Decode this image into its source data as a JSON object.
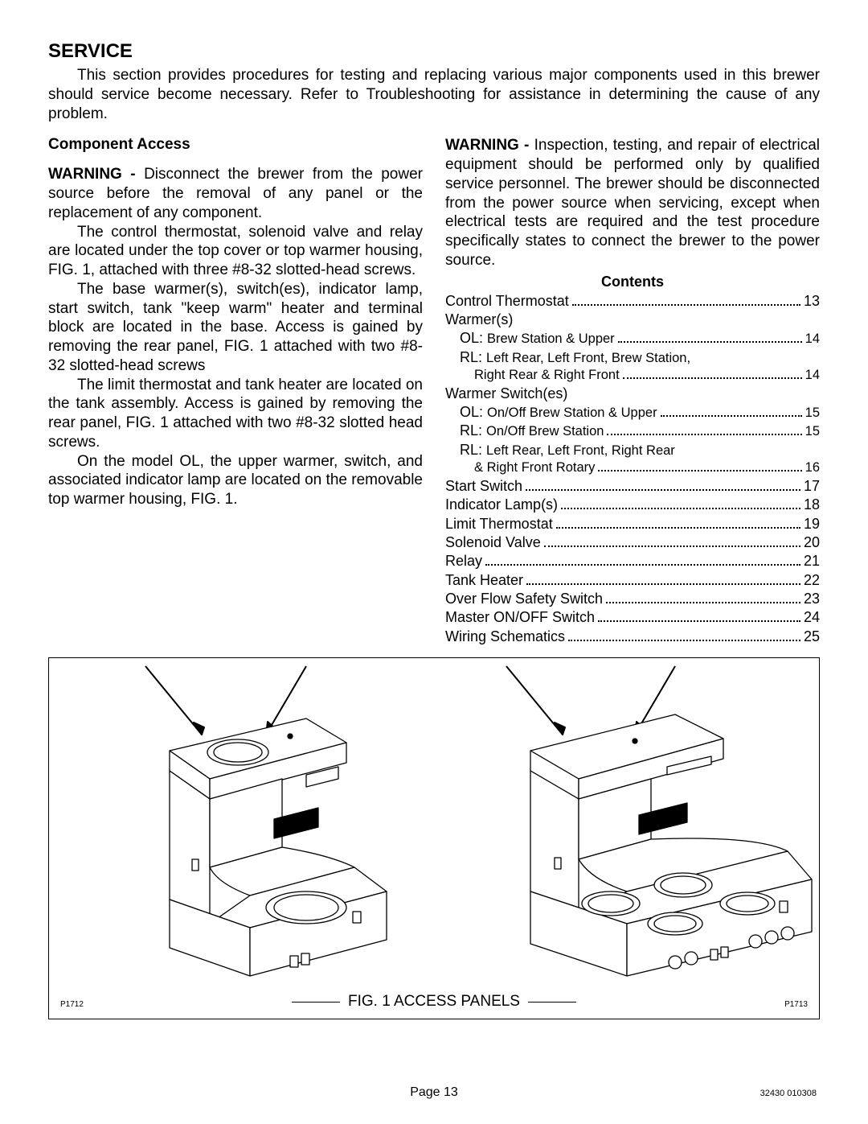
{
  "heading": "SERVICE",
  "intro": "This section provides procedures for testing and replacing various major components used in this brewer should service become necessary.  Refer to Troubleshooting for assistance in determining the cause of any problem.",
  "left": {
    "subhead": "Component Access",
    "warning_label": "WARNING - ",
    "warning_text": "Disconnect the brewer from the power source before the removal of any panel or the replacement of any component.",
    "p1": "The control thermostat, solenoid valve and relay are located under the top cover or top warmer housing, FIG. 1, attached with three #8-32 slotted-head screws.",
    "p2": "The base warmer(s), switch(es), indicator lamp, start switch, tank \"keep warm\" heater and terminal block are located in the base.  Access is gained by removing the rear panel, FIG. 1 attached with two #8-32 slotted-head screws",
    "p3": "The limit thermostat and tank heater are located on the tank assembly.  Access is gained by removing the rear panel, FIG. 1 attached with two #8-32 slotted head screws.",
    "p4": "On the model OL, the upper warmer, switch, and associated indicator lamp are located on the removable top warmer housing, FIG. 1."
  },
  "right": {
    "warning_label": "WARNING - ",
    "warning_text": "Inspection, testing, and repair of electrical equipment should be performed only by qualified service personnel.  The brewer should be disconnected from the power source when servicing, except when electrical tests are required and the test procedure specifically states to connect the brewer to the power source.",
    "contents_head": "Contents",
    "toc": [
      {
        "type": "row",
        "label": "Control Thermostat",
        "page": "13"
      },
      {
        "type": "head",
        "label": "Warmer(s)"
      },
      {
        "type": "sub",
        "prefix": "OL: ",
        "label": "Brew Station & Upper",
        "page": "14"
      },
      {
        "type": "sub_noline",
        "prefix": "RL: ",
        "label": "Left Rear, Left Front, Brew Station,"
      },
      {
        "type": "sub2",
        "label": "Right Rear & Right Front",
        "page": "14"
      },
      {
        "type": "head",
        "label": "Warmer Switch(es)"
      },
      {
        "type": "sub",
        "prefix": "OL: ",
        "label": "On/Off Brew Station & Upper",
        "page": "15"
      },
      {
        "type": "sub",
        "prefix": "RL: ",
        "label": "On/Off Brew Station",
        "page": "15"
      },
      {
        "type": "sub_noline",
        "prefix": "RL: ",
        "label": "Left Rear, Left Front, Right Rear"
      },
      {
        "type": "sub2",
        "label": "& Right Front Rotary",
        "page": "16"
      },
      {
        "type": "row",
        "label": "Start Switch",
        "page": "17"
      },
      {
        "type": "row",
        "label": "Indicator Lamp(s)",
        "page": "18"
      },
      {
        "type": "row",
        "label": "Limit Thermostat",
        "page": "19"
      },
      {
        "type": "row",
        "label": "Solenoid Valve",
        "page": "20"
      },
      {
        "type": "row",
        "label": "Relay",
        "page": "21"
      },
      {
        "type": "row",
        "label": "Tank Heater",
        "page": "22"
      },
      {
        "type": "row",
        "label": "Over Flow Safety Switch",
        "page": "23"
      },
      {
        "type": "row",
        "label": "Master ON/OFF Switch",
        "page": "24"
      },
      {
        "type": "row",
        "label": "Wiring Schematics",
        "page": "25"
      }
    ]
  },
  "figure": {
    "caption": "FIG. 1 ACCESS PANELS",
    "left_pnum": "P1712",
    "right_pnum": "P1713",
    "stroke": "#000000",
    "fill": "#ffffff"
  },
  "footer": {
    "page_label": "Page 13",
    "docnum": "32430 010308"
  }
}
